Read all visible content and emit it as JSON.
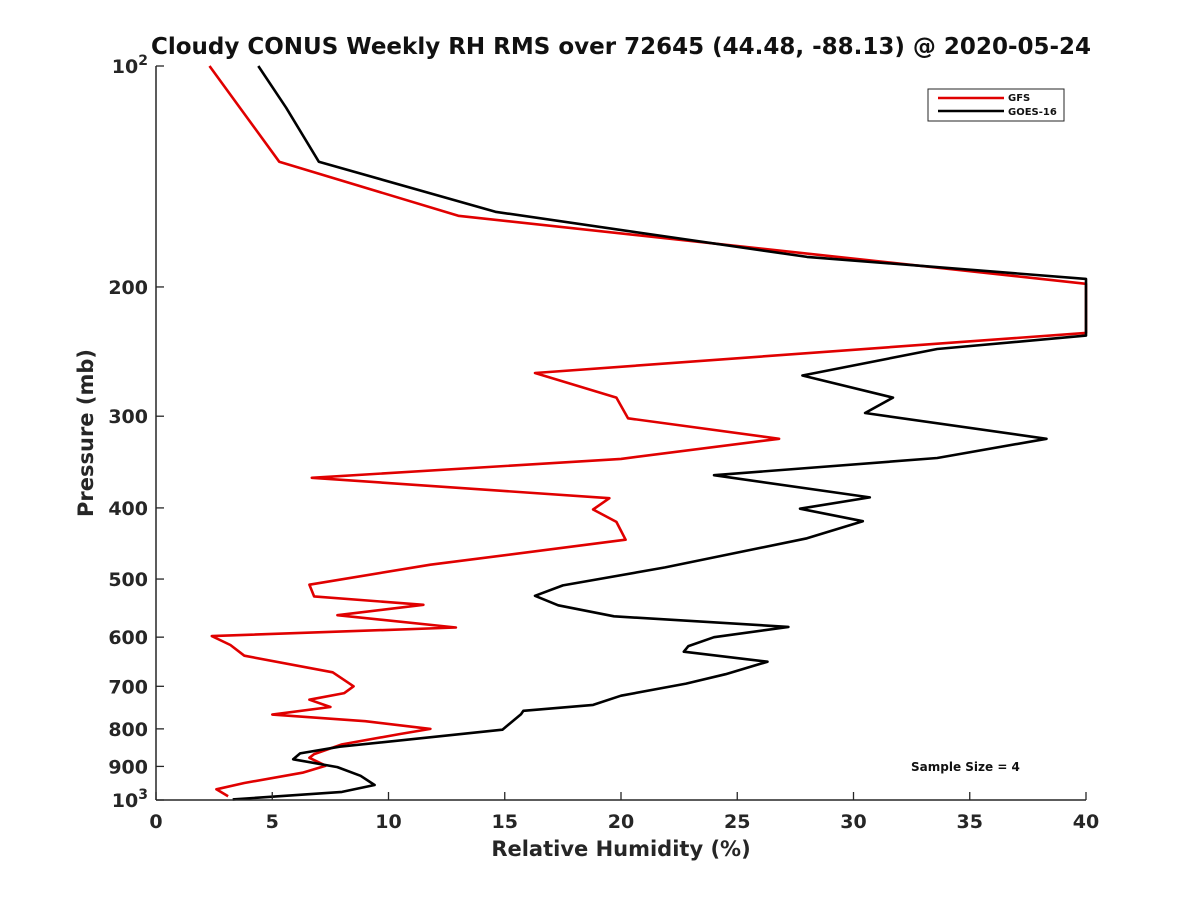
{
  "chart_data": {
    "type": "line",
    "title": "Cloudy CONUS Weekly RH RMS over 72645 (44.48, -88.13) @ 2020-05-24",
    "xlabel": "Relative Humidity (%)",
    "ylabel": "Pressure (mb)",
    "xlim": [
      0,
      40
    ],
    "ylim": [
      100,
      1000
    ],
    "y_scale": "log",
    "y_reversed": true,
    "x_ticks": [
      {
        "value": 0,
        "label": "0"
      },
      {
        "value": 5,
        "label": "5"
      },
      {
        "value": 10,
        "label": "10"
      },
      {
        "value": 15,
        "label": "15"
      },
      {
        "value": 20,
        "label": "20"
      },
      {
        "value": 25,
        "label": "25"
      },
      {
        "value": 30,
        "label": "30"
      },
      {
        "value": 35,
        "label": "35"
      },
      {
        "value": 40,
        "label": "40"
      }
    ],
    "y_ticks": [
      {
        "value": 100,
        "label": "10",
        "sup": "2"
      },
      {
        "value": 200,
        "label": "200"
      },
      {
        "value": 300,
        "label": "300"
      },
      {
        "value": 400,
        "label": "400"
      },
      {
        "value": 500,
        "label": "500"
      },
      {
        "value": 600,
        "label": "600"
      },
      {
        "value": 700,
        "label": "700"
      },
      {
        "value": 800,
        "label": "800"
      },
      {
        "value": 900,
        "label": "900"
      },
      {
        "value": 1000,
        "label": "10",
        "sup": "3"
      }
    ],
    "grid": false,
    "legend_position": "top-right",
    "annotation": "Sample Size = 4",
    "series": [
      {
        "name": "GFS",
        "color": "#e00000",
        "points": [
          [
            2.3,
            100
          ],
          [
            3.7,
            115
          ],
          [
            5.3,
            135
          ],
          [
            13.0,
            160
          ],
          [
            40,
            198
          ],
          [
            40,
            231
          ],
          [
            16.3,
            262
          ],
          [
            19.8,
            283
          ],
          [
            20.3,
            302
          ],
          [
            26.8,
            322
          ],
          [
            20.0,
            343
          ],
          [
            6.7,
            364
          ],
          [
            19.5,
            388
          ],
          [
            18.8,
            402
          ],
          [
            19.8,
            418
          ],
          [
            20.2,
            442
          ],
          [
            11.8,
            478
          ],
          [
            6.6,
            509
          ],
          [
            6.8,
            528
          ],
          [
            11.5,
            542
          ],
          [
            7.8,
            560
          ],
          [
            12.9,
            582
          ],
          [
            2.4,
            598
          ],
          [
            3.2,
            615
          ],
          [
            3.8,
            636
          ],
          [
            7.6,
            670
          ],
          [
            8.5,
            700
          ],
          [
            8.1,
            715
          ],
          [
            6.6,
            730
          ],
          [
            7.5,
            747
          ],
          [
            5.0,
            765
          ],
          [
            9.0,
            781
          ],
          [
            11.8,
            800
          ],
          [
            10.5,
            813
          ],
          [
            8.0,
            840
          ],
          [
            6.8,
            866
          ],
          [
            6.6,
            876
          ],
          [
            7.3,
            898
          ],
          [
            6.3,
            918
          ],
          [
            3.8,
            948
          ],
          [
            2.6,
            967
          ],
          [
            3.1,
            988
          ]
        ]
      },
      {
        "name": "GOES-16",
        "color": "#000000",
        "points": [
          [
            4.4,
            100
          ],
          [
            5.6,
            114
          ],
          [
            7.0,
            135
          ],
          [
            14.6,
            158
          ],
          [
            28.0,
            182
          ],
          [
            40,
            195
          ],
          [
            40,
            233
          ],
          [
            33.6,
            243
          ],
          [
            27.8,
            264
          ],
          [
            31.7,
            283
          ],
          [
            30.5,
            297
          ],
          [
            38.3,
            322
          ],
          [
            33.6,
            342
          ],
          [
            24.0,
            361
          ],
          [
            30.7,
            387
          ],
          [
            27.7,
            401
          ],
          [
            30.4,
            417
          ],
          [
            28.0,
            440
          ],
          [
            21.9,
            482
          ],
          [
            17.5,
            510
          ],
          [
            16.3,
            527
          ],
          [
            17.3,
            543
          ],
          [
            19.7,
            562
          ],
          [
            27.2,
            581
          ],
          [
            24.0,
            600
          ],
          [
            22.9,
            617
          ],
          [
            22.7,
            628
          ],
          [
            26.3,
            648
          ],
          [
            24.5,
            674
          ],
          [
            22.8,
            694
          ],
          [
            20.0,
            721
          ],
          [
            18.8,
            742
          ],
          [
            15.8,
            756
          ],
          [
            15.7,
            764
          ],
          [
            14.9,
            802
          ],
          [
            7.9,
            846
          ],
          [
            6.2,
            864
          ],
          [
            5.9,
            880
          ],
          [
            7.8,
            902
          ],
          [
            8.8,
            927
          ],
          [
            9.4,
            954
          ],
          [
            8.0,
            975
          ],
          [
            3.3,
            998
          ]
        ]
      }
    ]
  }
}
